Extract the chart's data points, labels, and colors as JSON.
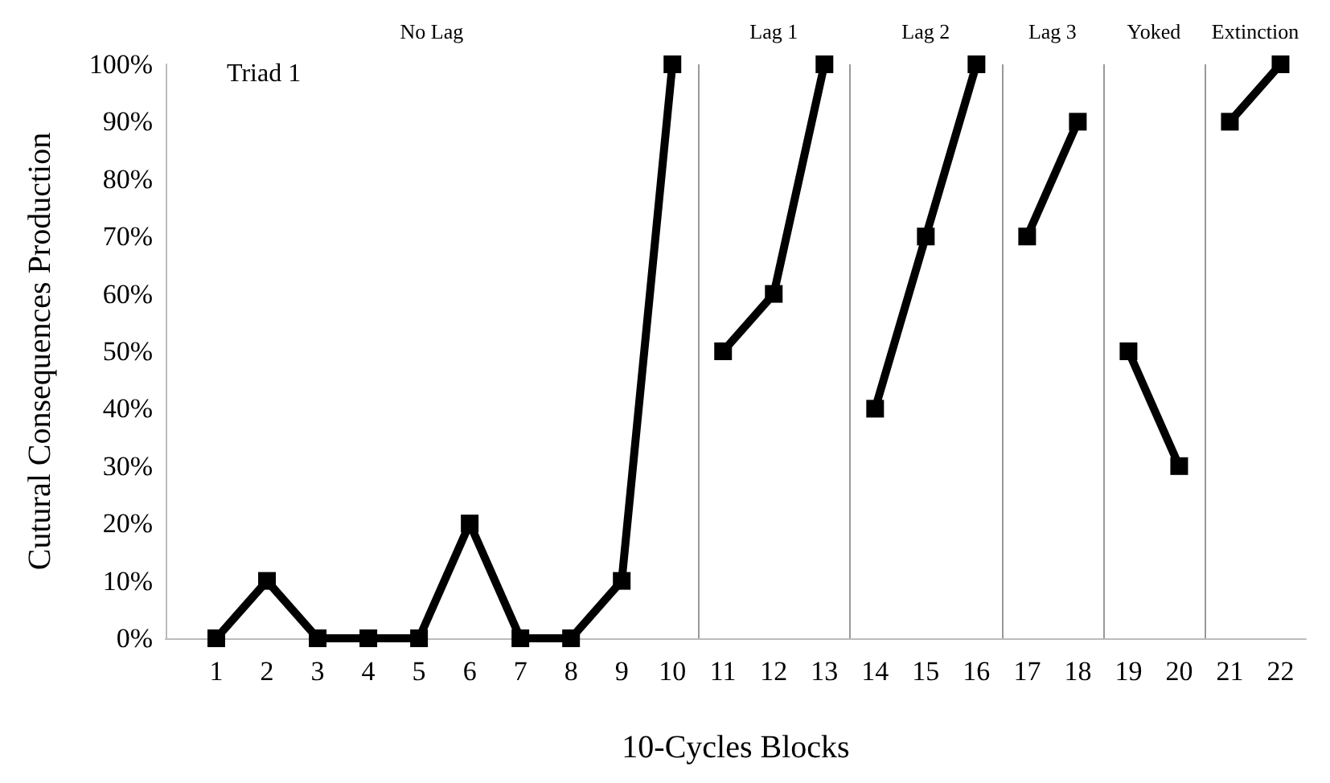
{
  "chart_data": {
    "type": "line",
    "xlabel": "10-Cycles Blocks",
    "ylabel": "Cutural Consequences Production",
    "annotations": [
      "Triad 1",
      "No Lag",
      "Lag 1",
      "Lag 2",
      "Lag 3",
      "Yoked",
      "Extinction"
    ],
    "xlim": [
      0,
      22.5
    ],
    "xticks": [
      1,
      2,
      3,
      4,
      5,
      6,
      7,
      8,
      9,
      10,
      11,
      12,
      13,
      14,
      15,
      16,
      17,
      18,
      19,
      20,
      21,
      22
    ],
    "ylim": [
      0,
      100
    ],
    "yticks": [
      {
        "value": 0,
        "label": "0%"
      },
      {
        "value": 10,
        "label": "10%"
      },
      {
        "value": 20,
        "label": "20%"
      },
      {
        "value": 30,
        "label": "30%"
      },
      {
        "value": 40,
        "label": "40%"
      },
      {
        "value": 50,
        "label": "50%"
      },
      {
        "value": 60,
        "label": "60%"
      },
      {
        "value": 70,
        "label": "70%"
      },
      {
        "value": 80,
        "label": "80%"
      },
      {
        "value": 90,
        "label": "90%"
      },
      {
        "value": 100,
        "label": "100%"
      }
    ],
    "series": [
      {
        "color": "#000000",
        "x": [
          1,
          2,
          3,
          4,
          5,
          6,
          7,
          8,
          9,
          10
        ],
        "values": [
          0,
          10,
          0,
          0,
          0,
          20,
          0,
          0,
          10,
          100
        ]
      },
      {
        "color": "#000000",
        "x": [
          11,
          12,
          13
        ],
        "values": [
          50,
          60,
          100
        ]
      },
      {
        "color": "#000000",
        "x": [
          14,
          15,
          16
        ],
        "values": [
          40,
          70,
          100
        ]
      },
      {
        "color": "#000000",
        "x": [
          17,
          18
        ],
        "values": [
          70,
          90
        ]
      },
      {
        "color": "#000000",
        "x": [
          19,
          20
        ],
        "values": [
          50,
          30
        ]
      },
      {
        "color": "#000000",
        "x": [
          21,
          22
        ],
        "values": [
          90,
          100
        ]
      }
    ],
    "ref_lines": [
      {
        "axis": "x",
        "value": 10.5,
        "color": "#999999"
      },
      {
        "axis": "x",
        "value": 13.5,
        "color": "#999999"
      },
      {
        "axis": "x",
        "value": 16.5,
        "color": "#999999"
      },
      {
        "axis": "x",
        "value": 18.5,
        "color": "#999999"
      },
      {
        "axis": "x",
        "value": 20.5,
        "color": "#999999"
      }
    ],
    "marker": "square",
    "line_style": "solid",
    "grid": false
  }
}
